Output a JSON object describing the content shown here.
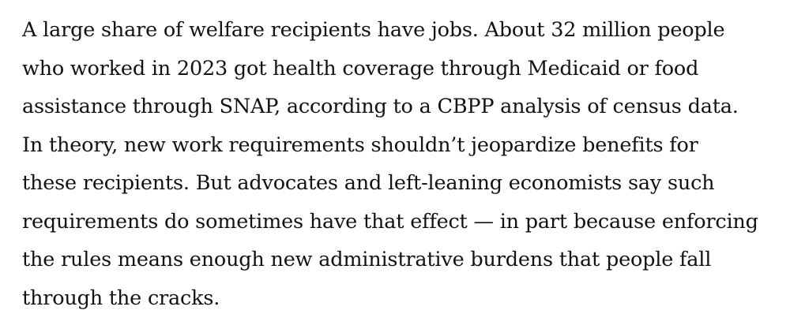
{
  "article": {
    "lines": [
      "A large share of welfare recipients have jobs. About 32 million people",
      "who worked in 2023 got health coverage through Medicaid or food",
      "assistance through SNAP, according to a CBPP analysis of census data.",
      "In theory, new work requirements shouldn’t jeopardize benefits for",
      "these recipients. But advocates and left-leaning economists say such",
      "requirements do sometimes have that effect — in part because enforcing",
      "the rules means enough new administrative burdens that people fall",
      "through the cracks."
    ]
  }
}
